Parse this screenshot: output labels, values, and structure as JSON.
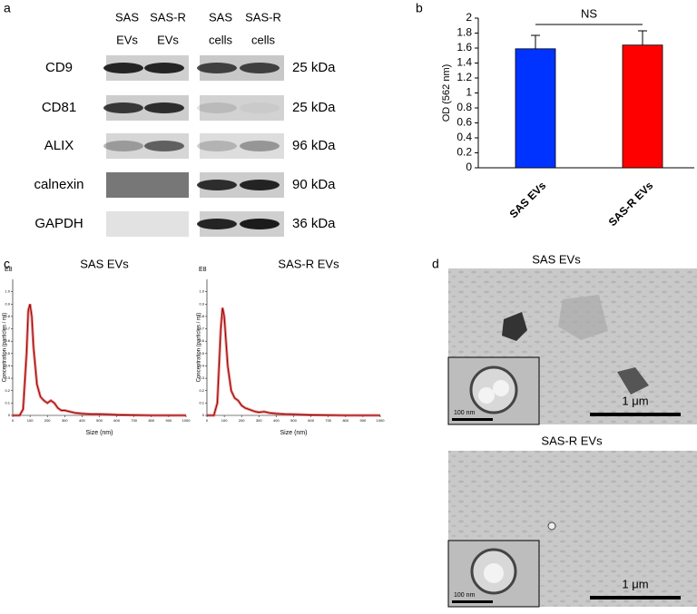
{
  "panel_labels": [
    "a",
    "b",
    "c",
    "d"
  ],
  "blot": {
    "columns": [
      [
        "SAS",
        "EVs"
      ],
      [
        "SAS-R",
        "EVs"
      ],
      [
        "SAS",
        "cells"
      ],
      [
        "SAS-R",
        "cells"
      ]
    ],
    "rows": [
      {
        "protein": "CD9",
        "size": "25 kDa"
      },
      {
        "protein": "CD81",
        "size": "25 kDa"
      },
      {
        "protein": "ALIX",
        "size": "96 kDa"
      },
      {
        "protein": "calnexin",
        "size": "90 kDa"
      },
      {
        "protein": "GAPDH",
        "size": "36 kDa"
      }
    ]
  },
  "chart_data": [
    {
      "type": "bar",
      "ylabel": "OD (562 nm)",
      "categories": [
        "SAS EVs",
        "SAS-R EVs"
      ],
      "values": [
        1.59,
        1.64
      ],
      "errors": [
        0.18,
        0.19
      ],
      "colors": [
        "#0033ff",
        "#ff0000"
      ],
      "ylim": [
        0,
        2
      ],
      "yticks": [
        0,
        0.2,
        0.4,
        0.6,
        0.8,
        1,
        1.2,
        1.4,
        1.6,
        1.8,
        2
      ],
      "annotation": "NS"
    },
    {
      "type": "line",
      "title": "SAS EVs",
      "xlabel": "Size (nm)",
      "ylabel": "Concentration (particles / ml)",
      "yunit": "E8",
      "color": "#8b0000",
      "x": [
        0,
        40,
        60,
        80,
        90,
        100,
        110,
        120,
        140,
        160,
        180,
        200,
        220,
        240,
        260,
        280,
        300,
        330,
        360,
        400,
        450,
        500,
        600,
        800,
        1000
      ],
      "values": [
        0,
        0,
        0.05,
        0.5,
        0.85,
        0.9,
        0.8,
        0.55,
        0.25,
        0.15,
        0.12,
        0.1,
        0.12,
        0.1,
        0.06,
        0.04,
        0.04,
        0.03,
        0.02,
        0.015,
        0.01,
        0.01,
        0.005,
        0,
        0
      ],
      "xlim": [
        0,
        1000
      ],
      "xticks": [
        0,
        100,
        200,
        300,
        400,
        500,
        600,
        700,
        800,
        900,
        1000
      ],
      "ylim": [
        0,
        1.1
      ],
      "yticks": [
        0,
        0.1,
        0.2,
        0.3,
        0.4,
        0.5,
        0.6,
        0.7,
        0.8,
        0.9,
        {
          "value": 1,
          "label": "1.0"
        }
      ]
    },
    {
      "type": "line",
      "title": "SAS-R EVs",
      "xlabel": "Size (nm)",
      "ylabel": "Concentration (particles / ml)",
      "yunit": "E8",
      "color": "#8b0000",
      "x": [
        0,
        40,
        60,
        80,
        90,
        100,
        110,
        120,
        140,
        160,
        180,
        200,
        220,
        240,
        260,
        280,
        300,
        330,
        360,
        400,
        450,
        500,
        600,
        800,
        1000
      ],
      "values": [
        0,
        0,
        0.1,
        0.7,
        0.87,
        0.8,
        0.6,
        0.4,
        0.2,
        0.14,
        0.12,
        0.08,
        0.06,
        0.05,
        0.04,
        0.03,
        0.025,
        0.03,
        0.02,
        0.015,
        0.01,
        0.008,
        0.004,
        0,
        0
      ],
      "xlim": [
        0,
        1000
      ],
      "xticks": [
        0,
        100,
        200,
        300,
        400,
        500,
        600,
        700,
        800,
        900,
        1000
      ],
      "ylim": [
        0,
        1.1
      ],
      "yticks": [
        0,
        0.1,
        0.2,
        0.3,
        0.4,
        0.5,
        0.6,
        0.7,
        0.8,
        0.9,
        {
          "value": 1,
          "label": "1.0"
        }
      ]
    }
  ],
  "tem": [
    {
      "title": "SAS EVs",
      "scale": "1 μm",
      "inset_scale": "100 nm"
    },
    {
      "title": "SAS-R EVs",
      "scale": "1 μm",
      "inset_scale": "100 nm"
    }
  ]
}
